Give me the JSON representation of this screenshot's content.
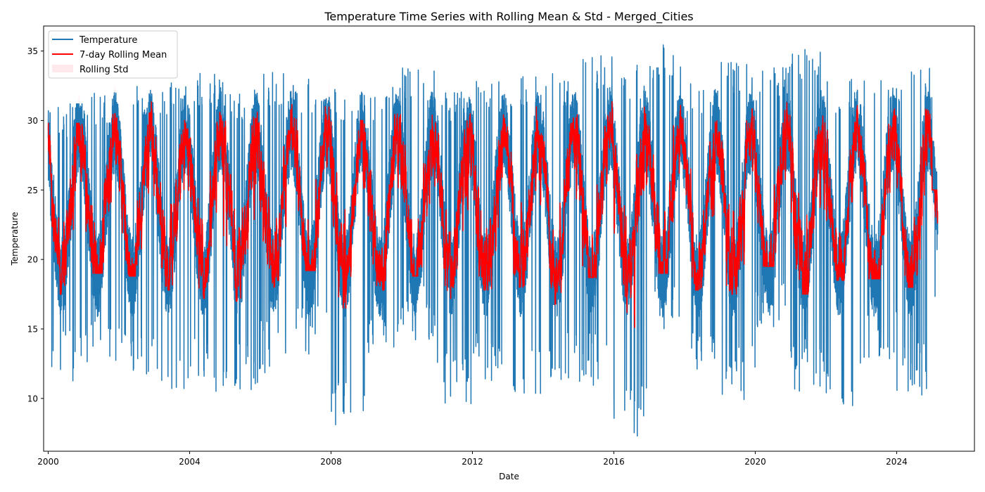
{
  "chart_data": {
    "type": "line",
    "title": "Temperature Time Series with Rolling Mean & Std - Merged_Cities",
    "xlabel": "Date",
    "ylabel": "Temperature",
    "xlim": [
      1999.87,
      2026.2
    ],
    "ylim": [
      6.2,
      36.8
    ],
    "x_ticks": [
      2000,
      2004,
      2008,
      2012,
      2016,
      2020,
      2024
    ],
    "x_tick_labels": [
      "2000",
      "2004",
      "2008",
      "2012",
      "2016",
      "2020",
      "2024"
    ],
    "y_ticks": [
      10,
      15,
      20,
      25,
      30,
      35
    ],
    "y_tick_labels": [
      "10",
      "15",
      "20",
      "25",
      "30",
      "35"
    ],
    "grid": false,
    "legend_position": "top-left",
    "x_range_data": [
      "2000-01-01",
      "2025-02-28"
    ],
    "series": [
      {
        "name": "Temperature",
        "style": "line",
        "color": "#1f77b4",
        "yearly_envelope": {
          "years": [
            2000,
            2001,
            2002,
            2003,
            2004,
            2005,
            2006,
            2007,
            2008,
            2009,
            2010,
            2011,
            2012,
            2013,
            2014,
            2015,
            2016,
            2017,
            2018,
            2019,
            2020,
            2021,
            2022,
            2023,
            2024,
            2025
          ],
          "summer_peak": [
            31.2,
            32.0,
            32.7,
            32.8,
            33.5,
            32.5,
            33.5,
            33.0,
            32.3,
            32.5,
            33.9,
            32.1,
            33.0,
            33.2,
            33.4,
            34.7,
            34.0,
            35.5,
            33.0,
            34.3,
            33.9,
            35.3,
            33.0,
            32.9,
            33.8,
            28.5
          ],
          "winter_low": [
            11.0,
            12.5,
            11.1,
            10.1,
            10.5,
            10.2,
            11.7,
            12.9,
            7.5,
            13.2,
            14.1,
            9.5,
            10.8,
            9.9,
            11.0,
            10.8,
            7.0,
            14.4,
            12.0,
            9.8,
            15.0,
            10.4,
            9.0,
            12.5,
            10.1,
            14.3
          ]
        }
      },
      {
        "name": "7-day Rolling Mean",
        "style": "line",
        "color": "#ff0000",
        "yearly_envelope": {
          "years": [
            2000,
            2001,
            2002,
            2003,
            2004,
            2005,
            2006,
            2007,
            2008,
            2009,
            2010,
            2011,
            2012,
            2013,
            2014,
            2015,
            2016,
            2017,
            2018,
            2019,
            2020,
            2021,
            2022,
            2023,
            2024,
            2025
          ],
          "summer_peak": [
            29.8,
            30.5,
            31.5,
            31.5,
            31.0,
            31.5,
            31.3,
            31.0,
            30.0,
            30.8,
            31.5,
            30.5,
            31.3,
            31.0,
            31.5,
            32.5,
            32.0,
            32.5,
            31.0,
            32.5,
            32.0,
            32.8,
            31.3,
            31.5,
            32.0,
            25.0
          ],
          "winter_low": [
            17.5,
            19.0,
            18.8,
            17.8,
            17.2,
            17.0,
            18.0,
            19.2,
            16.5,
            17.8,
            18.8,
            16.3,
            17.8,
            18.0,
            16.7,
            18.7,
            15.1,
            19.0,
            17.8,
            17.5,
            19.5,
            17.5,
            18.5,
            18.6,
            18.0,
            18.8
          ]
        }
      },
      {
        "name": "Rolling Std",
        "style": "band",
        "color": "#ffc0cb"
      }
    ]
  }
}
